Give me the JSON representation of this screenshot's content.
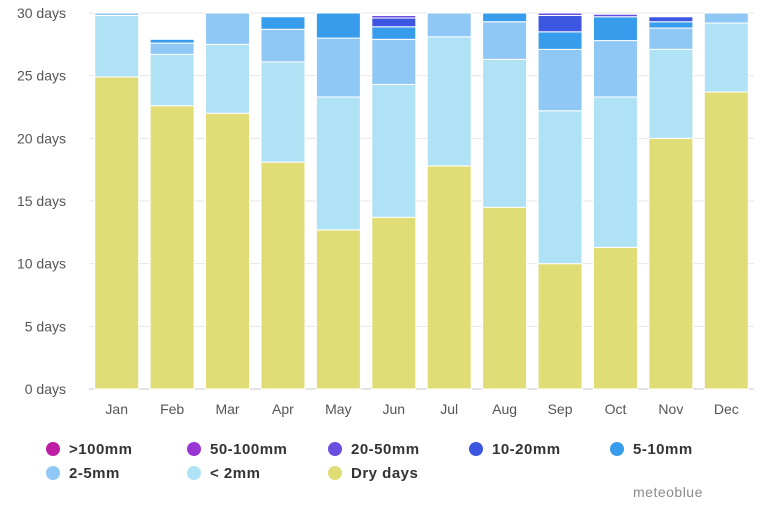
{
  "chart_data": {
    "type": "bar",
    "stacked": true,
    "title": "",
    "xlabel": "",
    "ylabel": "",
    "ylim": [
      0,
      30
    ],
    "y_ticks": [
      0,
      5,
      10,
      15,
      20,
      25,
      30
    ],
    "y_tick_labels": [
      "0 days",
      "5 days",
      "10 days",
      "15 days",
      "20 days",
      "25 days",
      "30 days"
    ],
    "grid": "horizontal",
    "categories": [
      "Jan",
      "Feb",
      "Mar",
      "Apr",
      "May",
      "Jun",
      "Jul",
      "Aug",
      "Sep",
      "Oct",
      "Nov",
      "Dec"
    ],
    "series": [
      {
        "name": "Dry days",
        "color": "#e0dc76",
        "values": [
          24.9,
          22.6,
          22.0,
          18.1,
          12.7,
          13.7,
          17.8,
          14.5,
          10.0,
          11.3,
          20.0,
          23.7
        ]
      },
      {
        "name": "< 2mm",
        "color": "#b0e2f6",
        "values": [
          4.9,
          4.1,
          5.5,
          8.0,
          10.6,
          10.6,
          10.3,
          11.8,
          12.2,
          12.0,
          7.1,
          5.5
        ]
      },
      {
        "name": "2-5mm",
        "color": "#8fc8f4",
        "values": [
          0.2,
          0.9,
          2.5,
          2.6,
          4.7,
          3.6,
          1.9,
          3.0,
          4.9,
          4.5,
          1.7,
          0.8
        ]
      },
      {
        "name": "5-10mm",
        "color": "#389cec",
        "values": [
          0.0,
          0.3,
          0.0,
          1.0,
          2.0,
          1.0,
          0.0,
          0.7,
          1.4,
          1.9,
          0.5,
          0.0
        ]
      },
      {
        "name": "10-20mm",
        "color": "#3c56e2",
        "values": [
          0.0,
          0.0,
          0.0,
          0.0,
          0.0,
          0.7,
          0.0,
          0.0,
          1.3,
          0.0,
          0.4,
          0.0
        ]
      },
      {
        "name": "20-50mm",
        "color": "#6a4ee0",
        "values": [
          0.0,
          0.0,
          0.0,
          0.0,
          0.0,
          0.2,
          0.0,
          0.0,
          0.2,
          0.2,
          0.0,
          0.0
        ]
      },
      {
        "name": "50-100mm",
        "color": "#9a36d6",
        "values": [
          0.0,
          0.0,
          0.0,
          0.0,
          0.0,
          0.0,
          0.0,
          0.0,
          0.0,
          0.0,
          0.0,
          0.0
        ]
      },
      {
        "name": ">100mm",
        "color": "#bd1ea3",
        "values": [
          0.0,
          0.0,
          0.0,
          0.0,
          0.0,
          0.0,
          0.0,
          0.0,
          0.0,
          0.0,
          0.0,
          0.0
        ]
      }
    ],
    "legend": {
      "placement": "bottom",
      "items": [
        {
          "name": ">100mm",
          "label": ">100mm",
          "color": "#bd1ea3"
        },
        {
          "name": "50-100mm",
          "label": "50-100mm",
          "color": "#9a36d6"
        },
        {
          "name": "20-50mm",
          "label": "20-50mm",
          "color": "#6a4ee0"
        },
        {
          "name": "10-20mm",
          "label": "10-20mm",
          "color": "#3c56e2"
        },
        {
          "name": "5-10mm",
          "label": "5-10mm",
          "color": "#389cec"
        },
        {
          "name": "2-5mm",
          "label": "2-5mm",
          "color": "#8fc8f4"
        },
        {
          "name": "< 2mm",
          "label": "< 2mm",
          "color": "#b0e2f6"
        },
        {
          "name": "Dry days",
          "label": "Dry days",
          "color": "#e0dc76"
        }
      ]
    }
  },
  "credit": "meteoblue"
}
